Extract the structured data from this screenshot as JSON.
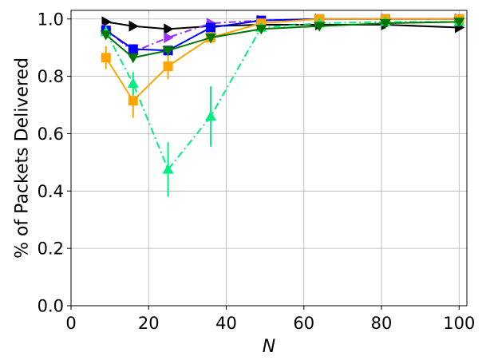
{
  "chart_data": {
    "type": "line",
    "title": "",
    "xlabel": "N",
    "ylabel": "% of Packets Delivered",
    "xlim": [
      0,
      102
    ],
    "ylim": [
      0,
      1.03
    ],
    "xticks": [
      0,
      20,
      40,
      60,
      80,
      100
    ],
    "xtick_labels": [
      "0",
      "20",
      "40",
      "60",
      "80",
      "100"
    ],
    "yticks": [
      0,
      0.2,
      0.4,
      0.6,
      0.8,
      1.0
    ],
    "ytick_labels": [
      "0.0",
      "0.2",
      "0.4",
      "0.6",
      "0.8",
      "1.0"
    ],
    "grid": true,
    "legend": "none",
    "series": [
      {
        "color": "#000000",
        "marker": "triangle-right",
        "dash": "solid",
        "x": [
          9,
          16,
          25,
          36,
          49,
          64,
          81,
          100
        ],
        "y": [
          0.99,
          0.975,
          0.965,
          0.975,
          0.98,
          0.98,
          0.98,
          0.97
        ]
      },
      {
        "color": "#9b30ff",
        "marker": "triangle-right",
        "dash": "dashdot",
        "x": [
          9,
          16,
          25,
          36,
          49,
          64,
          81,
          100
        ],
        "y": [
          0.965,
          0.885,
          0.935,
          0.985,
          0.995,
          1.0,
          1.0,
          1.0
        ]
      },
      {
        "color": "#0000ff",
        "marker": "square",
        "dash": "solid",
        "x": [
          9,
          16,
          25,
          36,
          49,
          64,
          81,
          100
        ],
        "y": [
          0.96,
          0.895,
          0.89,
          0.97,
          0.995,
          1.0,
          1.0,
          1.0
        ]
      },
      {
        "color": "#ffa500",
        "marker": "square",
        "dash": "solid",
        "x": [
          9,
          16,
          25,
          36,
          49,
          64,
          81,
          100
        ],
        "y": [
          0.865,
          0.715,
          0.835,
          0.935,
          0.985,
          1.0,
          1.0,
          1.0
        ],
        "err": [
          0.04,
          0.06,
          0.045,
          0.02,
          0.01,
          0.0,
          0.0,
          0.0
        ]
      },
      {
        "color": "#00ee80",
        "marker": "triangle-up",
        "dash": "dashdot",
        "x": [
          9,
          16,
          25,
          36,
          49,
          64,
          81,
          100
        ],
        "y": [
          0.955,
          0.775,
          0.475,
          0.66,
          0.97,
          0.985,
          0.99,
          0.99
        ],
        "err": [
          0.02,
          0.04,
          0.095,
          0.105,
          0.015,
          0.01,
          0.0,
          0.0
        ]
      },
      {
        "color": "#007700",
        "marker": "triangle-down",
        "dash": "solid",
        "x": [
          9,
          16,
          25,
          36,
          49,
          64,
          81,
          100
        ],
        "y": [
          0.945,
          0.865,
          0.89,
          0.935,
          0.965,
          0.975,
          0.985,
          0.99
        ]
      }
    ]
  }
}
